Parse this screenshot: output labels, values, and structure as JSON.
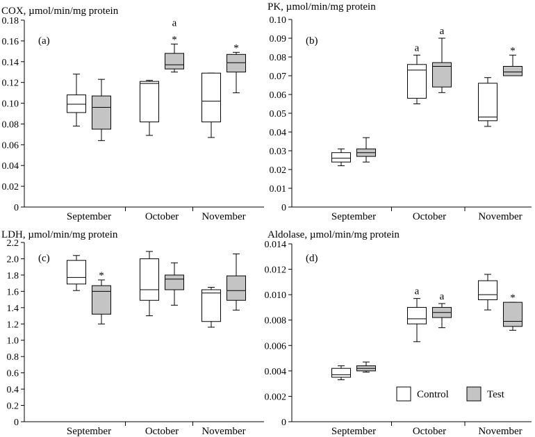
{
  "colors": {
    "control": "#ffffff",
    "test": "#c4c4c4",
    "ink": "#000000"
  },
  "chart_data": [
    {
      "type": "boxplot",
      "id": "(a)",
      "title": "COX, µmol/min/mg protein",
      "categories": [
        "September",
        "October",
        "November"
      ],
      "ylim": [
        0,
        0.18
      ],
      "yticks": [
        0,
        0.02,
        0.04,
        0.06,
        0.08,
        0.1,
        0.12,
        0.14,
        0.16,
        0.18
      ],
      "ytick_labels": [
        "0",
        "0.02",
        "0.04",
        "0.06",
        "0.08",
        "0.10",
        "0.12",
        "0.14",
        "0.16",
        "0.18"
      ],
      "series": [
        {
          "name": "Control",
          "boxes": [
            {
              "min": 0.078,
              "q1": 0.091,
              "median": 0.099,
              "q3": 0.108,
              "max": 0.128,
              "annotation": ""
            },
            {
              "min": 0.069,
              "q1": 0.082,
              "median": 0.119,
              "q3": 0.121,
              "max": 0.122,
              "annotation": ""
            },
            {
              "min": 0.067,
              "q1": 0.082,
              "median": 0.102,
              "q3": 0.129,
              "max": 0.129,
              "annotation": ""
            }
          ]
        },
        {
          "name": "Test",
          "boxes": [
            {
              "min": 0.064,
              "q1": 0.075,
              "median": 0.096,
              "q3": 0.107,
              "max": 0.123,
              "annotation": ""
            },
            {
              "min": 0.13,
              "q1": 0.133,
              "median": 0.137,
              "q3": 0.148,
              "max": 0.157,
              "annotation": "a\n*"
            },
            {
              "min": 0.11,
              "q1": 0.13,
              "median": 0.139,
              "q3": 0.147,
              "max": 0.149,
              "annotation": "*"
            }
          ]
        }
      ]
    },
    {
      "type": "boxplot",
      "id": "(b)",
      "title": "PK, µmol/min/mg protein",
      "categories": [
        "September",
        "October",
        "November"
      ],
      "ylim": [
        0,
        0.1
      ],
      "yticks": [
        0,
        0.01,
        0.02,
        0.03,
        0.04,
        0.05,
        0.06,
        0.07,
        0.08,
        0.09,
        0.1
      ],
      "ytick_labels": [
        "0",
        "0.01",
        "0.02",
        "0.03",
        "0.04",
        "0.05",
        "0.06",
        "0.07",
        "0.08",
        "0.09",
        "0.10"
      ],
      "series": [
        {
          "name": "Control",
          "boxes": [
            {
              "min": 0.022,
              "q1": 0.024,
              "median": 0.026,
              "q3": 0.029,
              "max": 0.031,
              "annotation": ""
            },
            {
              "min": 0.055,
              "q1": 0.058,
              "median": 0.073,
              "q3": 0.076,
              "max": 0.081,
              "annotation": "a"
            },
            {
              "min": 0.043,
              "q1": 0.046,
              "median": 0.048,
              "q3": 0.066,
              "max": 0.069,
              "annotation": ""
            }
          ]
        },
        {
          "name": "Test",
          "boxes": [
            {
              "min": 0.024,
              "q1": 0.027,
              "median": 0.029,
              "q3": 0.031,
              "max": 0.037,
              "annotation": ""
            },
            {
              "min": 0.061,
              "q1": 0.064,
              "median": 0.075,
              "q3": 0.077,
              "max": 0.09,
              "annotation": "a"
            },
            {
              "min": 0.07,
              "q1": 0.07,
              "median": 0.072,
              "q3": 0.075,
              "max": 0.081,
              "annotation": "*"
            }
          ]
        }
      ]
    },
    {
      "type": "boxplot",
      "id": "(c)",
      "title": "LDH, µmol/min/mg protein",
      "categories": [
        "September",
        "October",
        "November"
      ],
      "ylim": [
        0,
        2.2
      ],
      "yticks": [
        0,
        0.2,
        0.4,
        0.6,
        0.8,
        1.0,
        1.2,
        1.4,
        1.6,
        1.8,
        2.0,
        2.2
      ],
      "ytick_labels": [
        "0",
        "0.2",
        "0.4",
        "0.6",
        "0.8",
        "1.0",
        "1.2",
        "1.4",
        "1.6",
        "1.8",
        "2.0",
        "2.2"
      ],
      "series": [
        {
          "name": "Control",
          "boxes": [
            {
              "min": 1.61,
              "q1": 1.69,
              "median": 1.77,
              "q3": 1.98,
              "max": 2.04,
              "annotation": ""
            },
            {
              "min": 1.3,
              "q1": 1.49,
              "median": 1.62,
              "q3": 2.0,
              "max": 2.09,
              "annotation": ""
            },
            {
              "min": 1.16,
              "q1": 1.23,
              "median": 1.58,
              "q3": 1.62,
              "max": 1.65,
              "annotation": ""
            }
          ]
        },
        {
          "name": "Test",
          "boxes": [
            {
              "min": 1.2,
              "q1": 1.32,
              "median": 1.6,
              "q3": 1.67,
              "max": 1.74,
              "annotation": "*"
            },
            {
              "min": 1.43,
              "q1": 1.62,
              "median": 1.75,
              "q3": 1.8,
              "max": 1.95,
              "annotation": ""
            },
            {
              "min": 1.37,
              "q1": 1.49,
              "median": 1.61,
              "q3": 1.79,
              "max": 2.06,
              "annotation": ""
            }
          ]
        }
      ]
    },
    {
      "type": "boxplot",
      "id": "(d)",
      "title": "Aldolase, µmol/min/mg protein",
      "categories": [
        "September",
        "October",
        "November"
      ],
      "ylim": [
        0,
        0.014
      ],
      "yticks": [
        0,
        0.002,
        0.004,
        0.006,
        0.008,
        0.01,
        0.012,
        0.014
      ],
      "ytick_labels": [
        "0",
        "0.002",
        "0.004",
        "0.006",
        "0.008",
        "0.010",
        "0.012",
        "0.014"
      ],
      "series": [
        {
          "name": "Control",
          "boxes": [
            {
              "min": 0.0033,
              "q1": 0.0035,
              "median": 0.0037,
              "q3": 0.0042,
              "max": 0.0044,
              "annotation": ""
            },
            {
              "min": 0.0063,
              "q1": 0.0077,
              "median": 0.0081,
              "q3": 0.009,
              "max": 0.0097,
              "annotation": "a"
            },
            {
              "min": 0.0088,
              "q1": 0.0096,
              "median": 0.01,
              "q3": 0.0111,
              "max": 0.0116,
              "annotation": ""
            }
          ]
        },
        {
          "name": "Test",
          "boxes": [
            {
              "min": 0.0039,
              "q1": 0.004,
              "median": 0.0042,
              "q3": 0.0044,
              "max": 0.0047,
              "annotation": ""
            },
            {
              "min": 0.0074,
              "q1": 0.0082,
              "median": 0.0086,
              "q3": 0.009,
              "max": 0.0093,
              "annotation": "a"
            },
            {
              "min": 0.0072,
              "q1": 0.0075,
              "median": 0.0079,
              "q3": 0.0094,
              "max": 0.0094,
              "annotation": "*"
            }
          ]
        }
      ]
    }
  ],
  "legend": {
    "items": [
      {
        "name": "Control"
      },
      {
        "name": "Test"
      }
    ]
  }
}
